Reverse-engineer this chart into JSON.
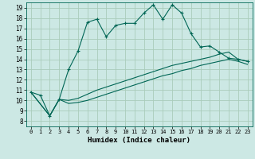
{
  "xlabel": "Humidex (Indice chaleur)",
  "bg_color": "#cce8e4",
  "grid_color": "#aaccbb",
  "line_color": "#006655",
  "xlim": [
    -0.5,
    23.5
  ],
  "ylim": [
    7.5,
    19.5
  ],
  "xticks": [
    0,
    1,
    2,
    3,
    4,
    5,
    6,
    7,
    8,
    9,
    10,
    11,
    12,
    13,
    14,
    15,
    16,
    17,
    18,
    19,
    20,
    21,
    22,
    23
  ],
  "yticks": [
    8,
    9,
    10,
    11,
    12,
    13,
    14,
    15,
    16,
    17,
    18,
    19
  ],
  "line1_x": [
    0,
    1,
    2,
    3,
    4,
    5,
    6,
    7,
    8,
    9,
    10,
    11,
    12,
    13,
    14,
    15,
    16,
    17,
    18,
    19,
    20,
    21,
    22,
    23
  ],
  "line1_y": [
    10.8,
    10.5,
    8.5,
    10.1,
    13.0,
    14.8,
    17.6,
    17.9,
    16.2,
    17.3,
    17.5,
    17.5,
    18.5,
    19.3,
    17.9,
    19.3,
    18.5,
    16.5,
    15.2,
    15.3,
    14.7,
    14.1,
    14.0,
    13.8
  ],
  "line2_x": [
    0,
    2,
    3,
    4,
    5,
    6,
    7,
    8,
    9,
    10,
    11,
    12,
    13,
    14,
    15,
    16,
    17,
    18,
    19,
    20,
    21,
    22,
    23
  ],
  "line2_y": [
    10.8,
    8.5,
    10.1,
    10.0,
    10.2,
    10.6,
    11.0,
    11.3,
    11.6,
    11.9,
    12.2,
    12.5,
    12.8,
    13.1,
    13.4,
    13.6,
    13.8,
    14.0,
    14.2,
    14.5,
    14.7,
    14.0,
    13.8
  ],
  "line3_x": [
    0,
    2,
    3,
    4,
    5,
    6,
    7,
    8,
    9,
    10,
    11,
    12,
    13,
    14,
    15,
    16,
    17,
    18,
    19,
    20,
    21,
    22,
    23
  ],
  "line3_y": [
    10.8,
    8.5,
    10.1,
    9.7,
    9.8,
    10.0,
    10.3,
    10.6,
    10.9,
    11.2,
    11.5,
    11.8,
    12.1,
    12.4,
    12.6,
    12.9,
    13.1,
    13.4,
    13.6,
    13.8,
    14.0,
    13.8,
    13.5
  ]
}
